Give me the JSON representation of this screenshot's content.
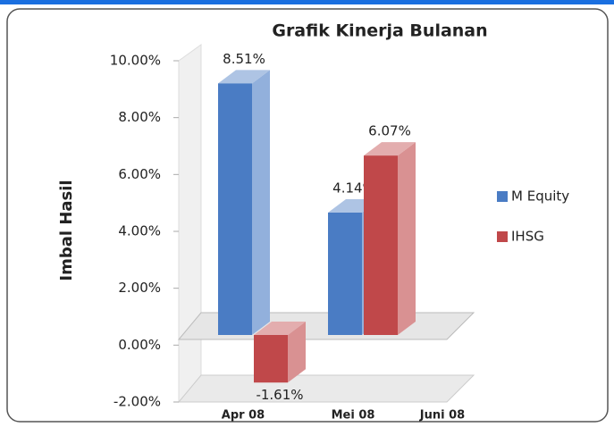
{
  "chart_data": {
    "type": "bar3d",
    "title": "Grafik Kinerja Bulanan",
    "y_label": "Imbal Hasil",
    "categories": [
      "Apr 08",
      "Mei 08",
      "Juni 08"
    ],
    "series": [
      {
        "name": "M Equity",
        "color": "#4a7cc4",
        "values": [
          8.51,
          4.14,
          null
        ],
        "value_labels": [
          "8.51%",
          "4.14%",
          null
        ]
      },
      {
        "name": "IHSG",
        "color": "#c0484a",
        "values": [
          -1.61,
          6.07,
          null
        ],
        "value_labels": [
          "-1.61%",
          "6.07%",
          null
        ]
      }
    ],
    "ylim": [
      -2,
      10
    ],
    "yticks": [
      {
        "value": -2,
        "label": "-2.00%"
      },
      {
        "value": 0,
        "label": "0.00%"
      },
      {
        "value": 2,
        "label": "2.00%"
      },
      {
        "value": 4,
        "label": "4.00%"
      },
      {
        "value": 6,
        "label": "6.00%"
      },
      {
        "value": 8,
        "label": "8.00%"
      },
      {
        "value": 10,
        "label": "10.00%"
      }
    ],
    "legend": "right",
    "grid": false
  }
}
